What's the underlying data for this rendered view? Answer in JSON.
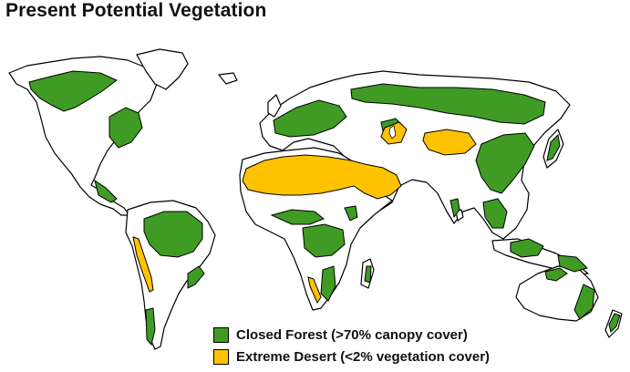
{
  "title": "Present Potential Vegetation",
  "colors": {
    "forest": "#3f9b24",
    "desert": "#ffc200",
    "outline": "#000000",
    "land": "#ffffff"
  },
  "legend": [
    {
      "label": "Closed Forest (>70% canopy cover)",
      "color": "#3f9b24"
    },
    {
      "label": "Extreme Desert (<2% vegetation cover)",
      "color": "#ffc200"
    }
  ]
}
